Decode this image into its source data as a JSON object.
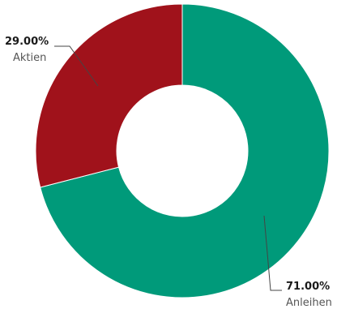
{
  "chart_data": {
    "type": "pie",
    "style": "donut",
    "start_angle": "12 o'clock",
    "direction": "clockwise",
    "slices": [
      {
        "name": "Anleihen",
        "value": 71.0,
        "value_label": "71.00%",
        "color": "#009a7a"
      },
      {
        "name": "Aktien",
        "value": 29.0,
        "value_label": "29.00%",
        "color": "#a0121b"
      }
    ]
  }
}
